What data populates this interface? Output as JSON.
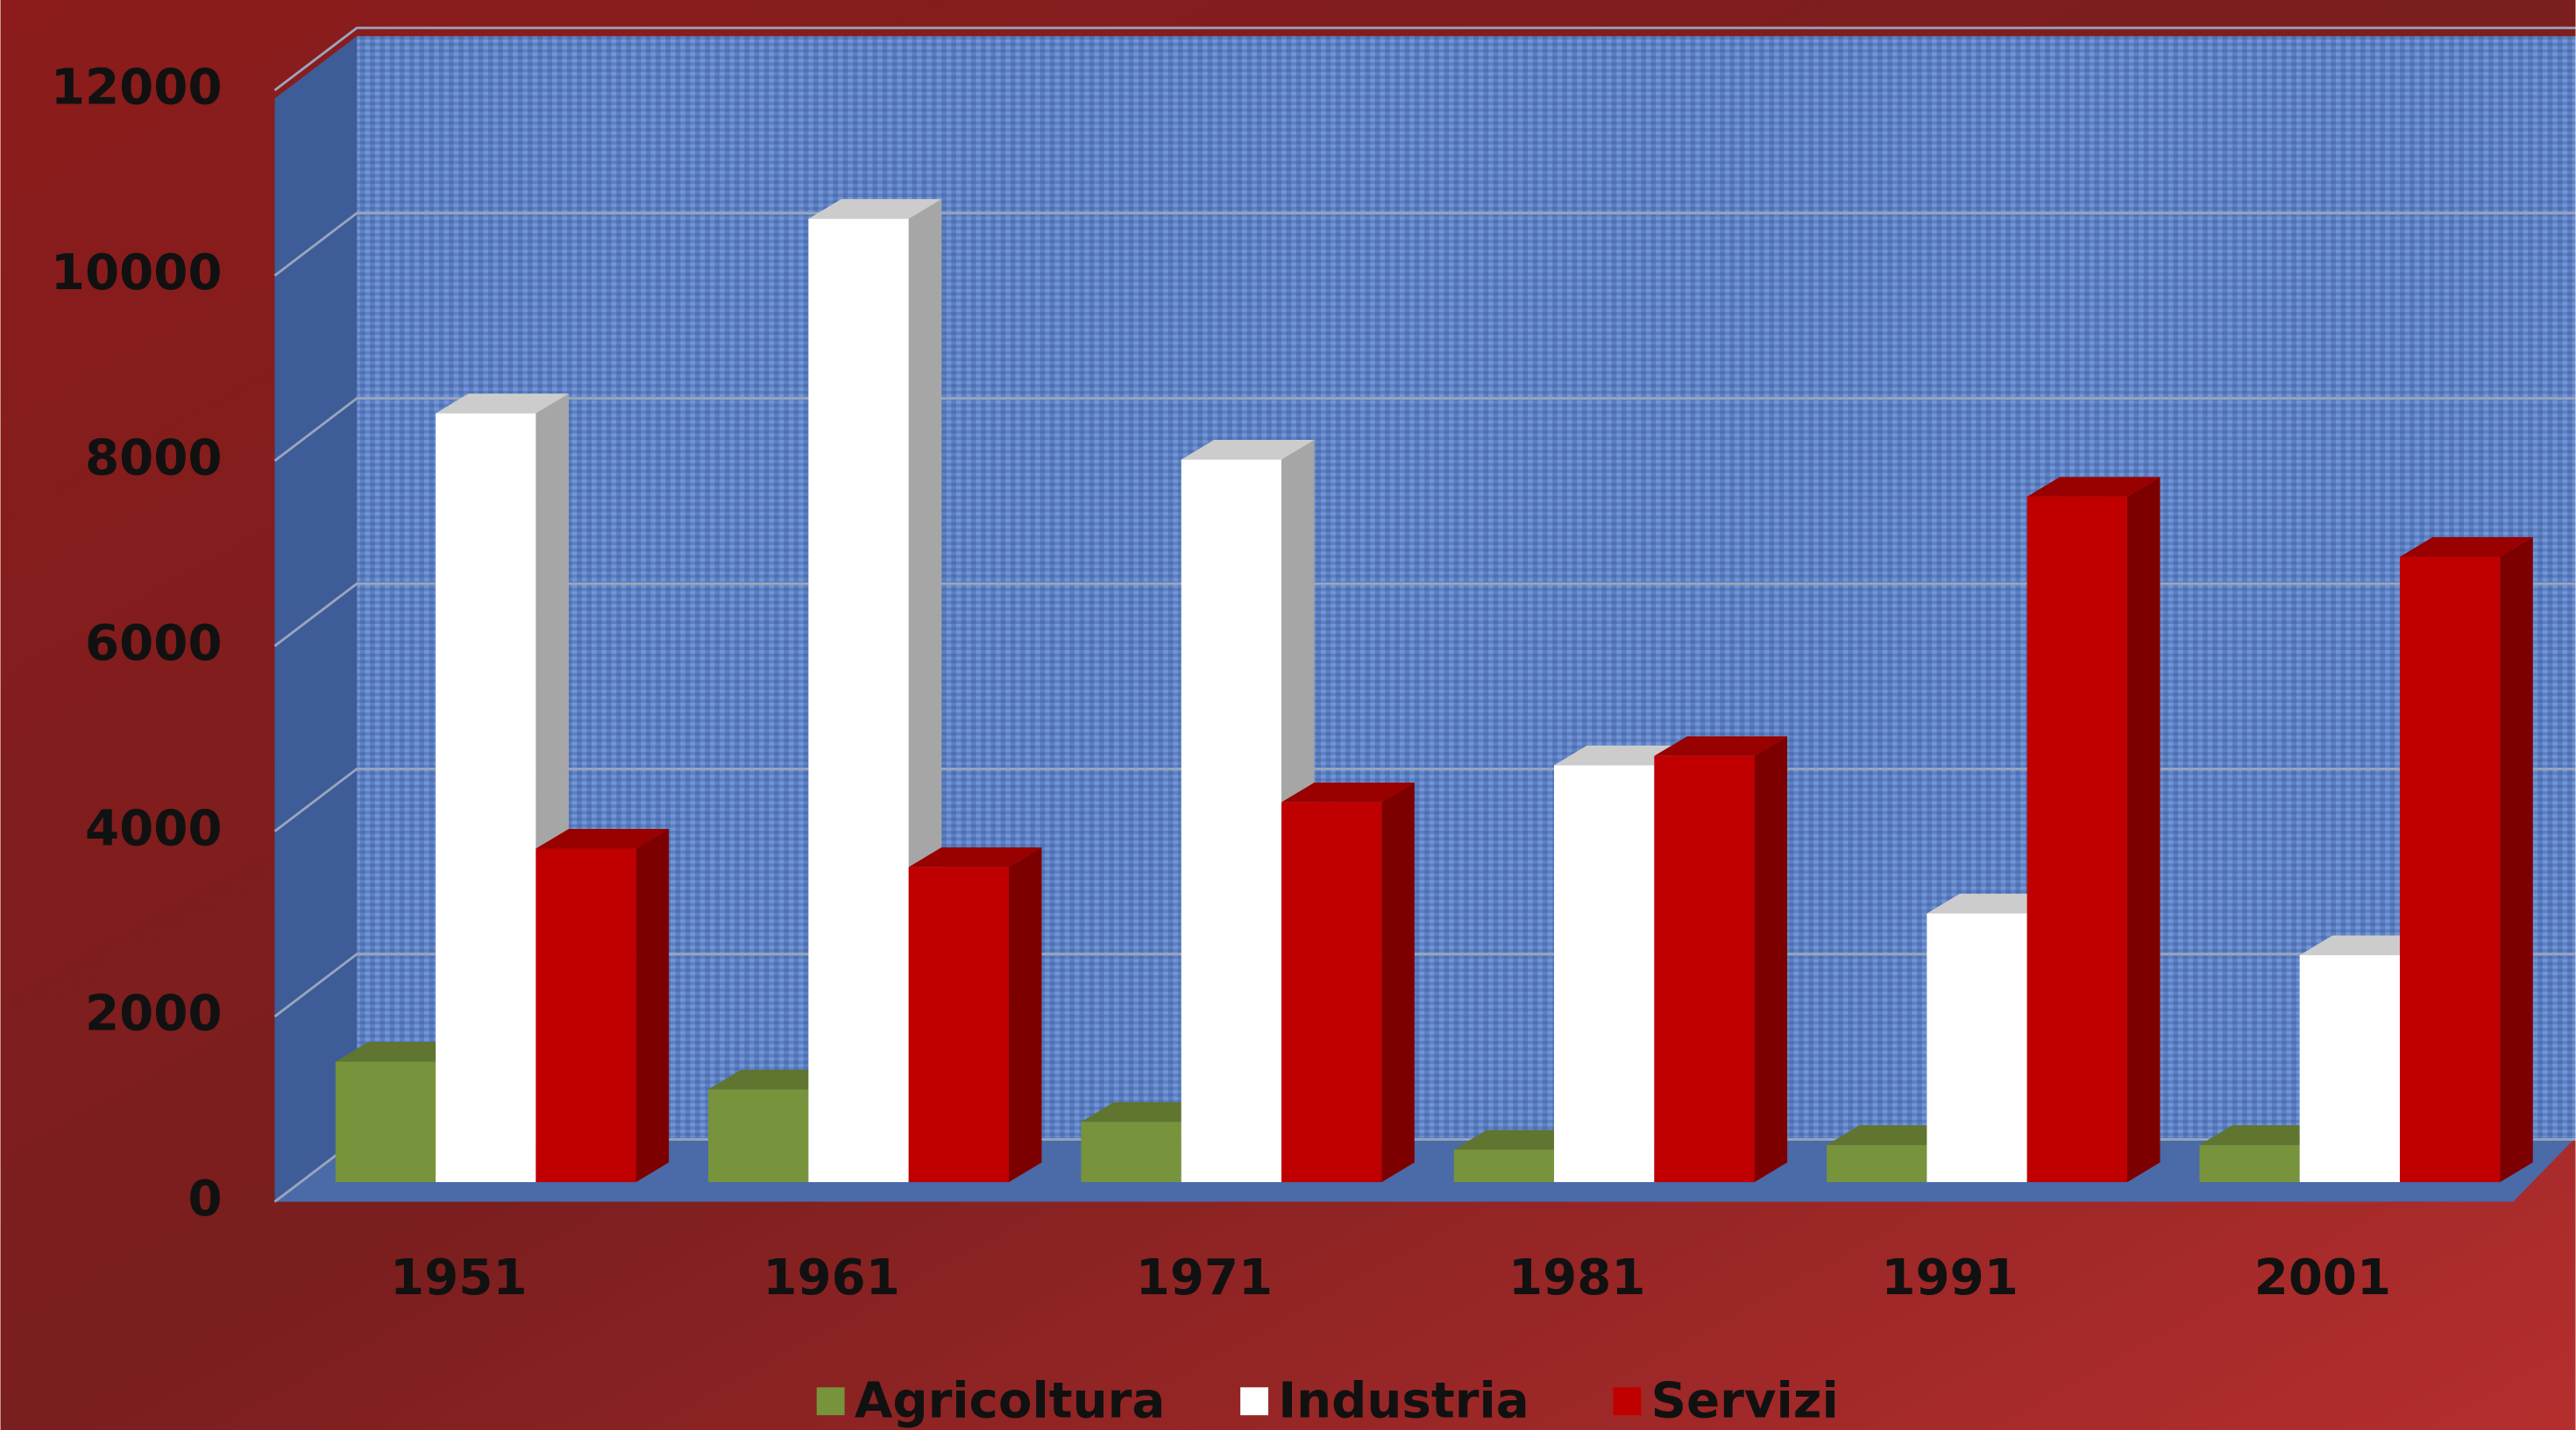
{
  "chart_data": {
    "type": "bar3d",
    "categories": [
      "1951",
      "1961",
      "1971",
      "1981",
      "1991",
      "2001"
    ],
    "series": [
      {
        "name": "Agricoltura",
        "color": "#77933c",
        "values": [
          1300,
          1000,
          650,
          350,
          400,
          400
        ]
      },
      {
        "name": "Industria",
        "color": "#ffffff",
        "values": [
          8300,
          10400,
          7800,
          4500,
          2900,
          2450
        ]
      },
      {
        "name": "Servizi",
        "color": "#c00000",
        "values": [
          3600,
          3400,
          4100,
          4600,
          7400,
          6750
        ]
      }
    ],
    "ylim": [
      0,
      12000
    ],
    "yticks": [
      0,
      2000,
      4000,
      6000,
      8000,
      10000,
      12000
    ],
    "grid": true,
    "legend": "bottom"
  }
}
